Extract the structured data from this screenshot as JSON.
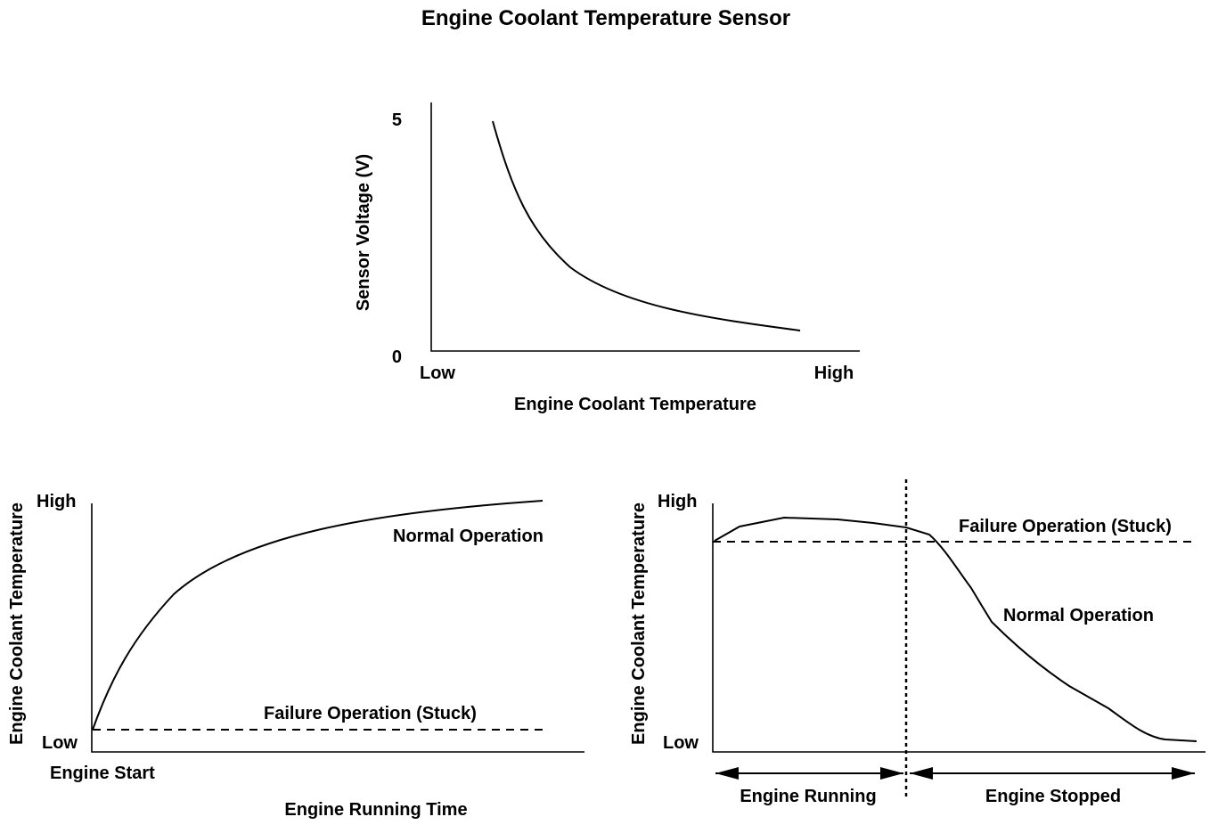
{
  "title": "Engine Coolant Temperature Sensor",
  "top_chart": {
    "ylabel": "Sensor Voltage (V)",
    "y_max_label": "5",
    "y_min_label": "0",
    "xlabel": "Engine Coolant Temperature",
    "x_low": "Low",
    "x_high": "High"
  },
  "bottom_left_chart": {
    "ylabel": "Engine Coolant Temperature",
    "y_high": "High",
    "y_low": "Low",
    "x_start": "Engine Start",
    "xlabel": "Engine Running Time",
    "normal_label": "Normal Operation",
    "failure_label": "Failure Operation (Stuck)"
  },
  "bottom_right_chart": {
    "ylabel": "Engine Coolant Temperature",
    "y_high": "High",
    "y_low": "Low",
    "normal_label": "Normal Operation",
    "failure_label": "Failure Operation (Stuck)",
    "running_label": "Engine Running",
    "stopped_label": "Engine Stopped"
  }
}
